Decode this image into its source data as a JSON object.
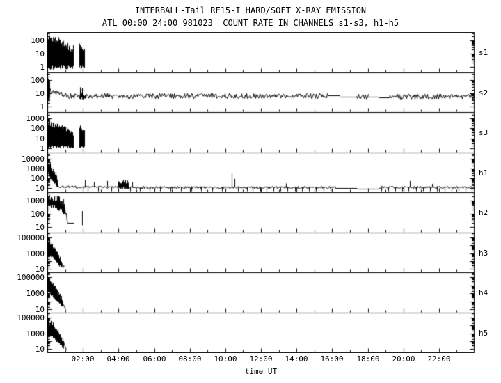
{
  "header": {
    "title_line1": "INTERBALL-Tail RF15-I HARD/SOFT X-RAY EMISSION",
    "title_line2": "ATL 00:00 24:00 981023  COUNT RATE IN CHANNELS s1-s3, h1-h5"
  },
  "colors": {
    "foreground": "#000000",
    "background": "#ffffff"
  },
  "chart_data": {
    "type": "line",
    "title": "INTERBALL-Tail RF15-I HARD/SOFT X-RAY EMISSION",
    "subtitle": "ATL 00:00 24:00 981023  COUNT RATE IN CHANNELS s1-s3, h1-h5",
    "yscale": "log",
    "grid": false,
    "x": {
      "label": "time UT",
      "range_hours": [
        0,
        24
      ],
      "tick_hours": [
        2,
        4,
        6,
        8,
        10,
        12,
        14,
        16,
        18,
        20,
        22
      ],
      "tick_labels": [
        "02:00",
        "04:00",
        "06:00",
        "08:00",
        "10:00",
        "12:00",
        "14:00",
        "16:00",
        "18:00",
        "20:00",
        "22:00"
      ]
    },
    "panels": [
      {
        "name": "s1",
        "ylim": [
          0.4,
          400
        ],
        "yticks": [
          100,
          10,
          1
        ],
        "segments": [
          {
            "kind": "band",
            "t": [
              0.0,
              0.55
            ],
            "top": [
              160,
              110
            ],
            "bottom": [
              0.9,
              0.9
            ]
          },
          {
            "kind": "band",
            "t": [
              0.55,
              1.45
            ],
            "top": [
              110,
              22
            ],
            "bottom": [
              0.9,
              0.9
            ]
          },
          {
            "kind": "band",
            "t": [
              1.78,
              2.08
            ],
            "top": [
              35,
              22
            ],
            "bottom": [
              0.9,
              0.9
            ]
          }
        ]
      },
      {
        "name": "s2",
        "ylim": [
          0.4,
          400
        ],
        "yticks": [
          100,
          10,
          1
        ],
        "segments": [
          {
            "kind": "band",
            "t": [
              0.0,
              0.12
            ],
            "top": [
              140,
              50
            ],
            "bottom": [
              2.5,
              4
            ]
          },
          {
            "kind": "noisy",
            "t": [
              0.12,
              1.1
            ],
            "level": [
              16,
              7
            ],
            "spread": 0.22
          },
          {
            "kind": "noisy",
            "t": [
              1.1,
              1.85
            ],
            "level": [
              6.5,
              6.5
            ],
            "spread": 0.2
          },
          {
            "kind": "band",
            "t": [
              1.85,
              2.15
            ],
            "top": [
              20,
              10
            ],
            "bottom": [
              4,
              4
            ]
          },
          {
            "kind": "noisy",
            "t": [
              2.15,
              15.75
            ],
            "level": [
              6.5,
              6.5
            ],
            "spread": 0.2
          },
          {
            "kind": "line",
            "t": [
              15.75,
              16.45
            ],
            "level": 7
          },
          {
            "kind": "line",
            "t": [
              16.45,
              17.3
            ],
            "level": 6
          },
          {
            "kind": "noisy",
            "t": [
              17.3,
              18.0
            ],
            "level": [
              6,
              6
            ],
            "spread": 0.18
          },
          {
            "kind": "line",
            "t": [
              18.0,
              18.65
            ],
            "level": 5.5
          },
          {
            "kind": "line",
            "t": [
              18.65,
              19.2
            ],
            "level": 4.8
          },
          {
            "kind": "noisy",
            "t": [
              19.2,
              24.0
            ],
            "level": [
              6,
              6
            ],
            "spread": 0.2
          }
        ]
      },
      {
        "name": "s3",
        "ylim": [
          0.4,
          4000
        ],
        "yticks": [
          1000,
          100,
          10,
          1
        ],
        "segments": [
          {
            "kind": "band",
            "t": [
              0.0,
              0.55
            ],
            "top": [
              300,
              200
            ],
            "bottom": [
              1.4,
              1.4
            ]
          },
          {
            "kind": "band",
            "t": [
              0.55,
              1.45
            ],
            "top": [
              200,
              35
            ],
            "bottom": [
              1.4,
              1.4
            ]
          },
          {
            "kind": "band",
            "t": [
              1.78,
              2.08
            ],
            "top": [
              150,
              70
            ],
            "bottom": [
              1.4,
              1.4
            ]
          }
        ]
      },
      {
        "name": "h1",
        "ylim": [
          4,
          40000
        ],
        "yticks": [
          10000,
          1000,
          100,
          10
        ],
        "segments": [
          {
            "kind": "band",
            "t": [
              0.0,
              0.15
            ],
            "top": [
              5000,
              2500
            ],
            "bottom": [
              400,
              120
            ]
          },
          {
            "kind": "band",
            "t": [
              0.15,
              0.55
            ],
            "top": [
              2500,
              120
            ],
            "bottom": [
              120,
              14
            ]
          },
          {
            "kind": "noisy",
            "t": [
              0.55,
              4.0
            ],
            "level": [
              14,
              12
            ],
            "spread": 0.12
          },
          {
            "kind": "band",
            "t": [
              4.0,
              4.55
            ],
            "top": [
              45,
              40
            ],
            "bottom": [
              11,
              11
            ]
          },
          {
            "kind": "noisy",
            "t": [
              4.55,
              16.2
            ],
            "level": [
              12,
              12
            ],
            "spread": 0.12
          },
          {
            "kind": "line",
            "t": [
              16.2,
              17.4
            ],
            "level": 11
          },
          {
            "kind": "line",
            "t": [
              17.4,
              18.6
            ],
            "level": 8.5
          },
          {
            "kind": "noisy",
            "t": [
              18.6,
              24.0
            ],
            "level": [
              12,
              12
            ],
            "spread": 0.12
          },
          {
            "kind": "spike",
            "t": 2.1,
            "base": 12,
            "peak": 70
          },
          {
            "kind": "spike",
            "t": 2.6,
            "base": 12,
            "peak": 45
          },
          {
            "kind": "spike",
            "t": 3.35,
            "base": 12,
            "peak": 55
          },
          {
            "kind": "spike",
            "t": 4.75,
            "base": 12,
            "peak": 40
          },
          {
            "kind": "spike",
            "t": 10.35,
            "base": 12,
            "peak": 350
          },
          {
            "kind": "spike",
            "t": 10.5,
            "base": 12,
            "peak": 90
          },
          {
            "kind": "spike",
            "t": 13.4,
            "base": 12,
            "peak": 30
          },
          {
            "kind": "spike",
            "t": 20.35,
            "base": 12,
            "peak": 55
          },
          {
            "kind": "spike",
            "t": 21.6,
            "base": 12,
            "peak": 28
          },
          {
            "kind": "dropouts",
            "times": [
              2.25,
              2.85,
              3.6,
              4.65,
              5.2,
              5.75,
              6.35,
              6.9,
              7.5,
              8.1,
              8.65,
              9.25,
              9.8,
              10.7,
              11.2,
              11.55,
              11.95,
              12.3,
              12.7,
              13.1,
              13.5,
              13.9,
              14.3,
              14.7,
              15.1,
              15.5,
              15.9,
              18.75,
              19.15,
              19.55,
              19.95,
              20.3,
              20.7,
              21.1,
              21.5,
              21.9,
              22.3,
              22.7,
              23.1,
              23.5,
              23.85
            ],
            "from": 12,
            "to": 5
          }
        ]
      },
      {
        "name": "h2",
        "ylim": [
          4,
          4000
        ],
        "yticks": [
          1000,
          100,
          10
        ],
        "segments": [
          {
            "kind": "band",
            "t": [
              0.0,
              0.55
            ],
            "top": [
              1900,
              1400
            ],
            "bottom": [
              450,
              260
            ]
          },
          {
            "kind": "band",
            "t": [
              0.55,
              0.95
            ],
            "top": [
              1400,
              650
            ],
            "bottom": [
              260,
              110
            ]
          },
          {
            "kind": "noisy",
            "t": [
              0.95,
              1.15
            ],
            "level": [
              280,
              24
            ],
            "spread": 0.25
          },
          {
            "kind": "line",
            "t": [
              1.15,
              1.5
            ],
            "level": 21
          },
          {
            "kind": "spike",
            "t": 1.95,
            "base": 14,
            "peak": 160
          }
        ]
      },
      {
        "name": "h3",
        "ylim": [
          4,
          400000
        ],
        "yticks": [
          100000,
          1000,
          10
        ],
        "segments": [
          {
            "kind": "band",
            "t": [
              0.0,
              0.25
            ],
            "top": [
              40000,
              16000
            ],
            "bottom": [
              900,
              420
            ]
          },
          {
            "kind": "band",
            "t": [
              0.25,
              0.8
            ],
            "top": [
              16000,
              90
            ],
            "bottom": [
              420,
              14
            ]
          },
          {
            "kind": "noisy",
            "t": [
              0.8,
              0.95
            ],
            "level": [
              60,
              12
            ],
            "spread": 0.3
          }
        ]
      },
      {
        "name": "h4",
        "ylim": [
          4,
          400000
        ],
        "yticks": [
          100000,
          1000,
          10
        ],
        "segments": [
          {
            "kind": "band",
            "t": [
              0.0,
              0.25
            ],
            "top": [
              60000,
              22000
            ],
            "bottom": [
              1400,
              600
            ]
          },
          {
            "kind": "band",
            "t": [
              0.25,
              0.85
            ],
            "top": [
              22000,
              140
            ],
            "bottom": [
              600,
              18
            ]
          },
          {
            "kind": "noisy",
            "t": [
              0.85,
              1.0
            ],
            "level": [
              80,
              12
            ],
            "spread": 0.3
          }
        ]
      },
      {
        "name": "h5",
        "ylim": [
          4,
          400000
        ],
        "yticks": [
          100000,
          1000,
          10
        ],
        "segments": [
          {
            "kind": "band",
            "t": [
              0.0,
              0.3
            ],
            "top": [
              40000,
              15000
            ],
            "bottom": [
              800,
              320
            ]
          },
          {
            "kind": "band",
            "t": [
              0.3,
              0.9
            ],
            "top": [
              15000,
              110
            ],
            "bottom": [
              320,
              14
            ]
          },
          {
            "kind": "noisy",
            "t": [
              0.9,
              1.05
            ],
            "level": [
              60,
              12
            ],
            "spread": 0.3
          }
        ]
      }
    ]
  }
}
